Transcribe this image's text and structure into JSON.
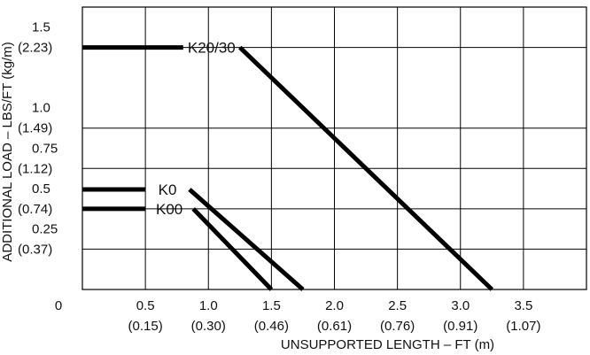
{
  "chart_data": {
    "type": "line",
    "title": "",
    "xlabel": "UNSUPPORTED LENGTH – FT (m)",
    "ylabel": "ADDITIONAL LOAD – LBS/FT (kg/m)",
    "xlim": [
      0,
      4.0
    ],
    "ylim": [
      0,
      1.75
    ],
    "grid": true,
    "x_ticks": [
      {
        "value": 0.5,
        "ft": "0.5",
        "m": "(0.15)"
      },
      {
        "value": 1.0,
        "ft": "1.0",
        "m": "(0.30)"
      },
      {
        "value": 1.5,
        "ft": "1.5",
        "m": "(0.46)"
      },
      {
        "value": 2.0,
        "ft": "2.0",
        "m": "(0.61)"
      },
      {
        "value": 2.5,
        "ft": "2.5",
        "m": "(0.76)"
      },
      {
        "value": 3.0,
        "ft": "3.0",
        "m": "(0.91)"
      },
      {
        "value": 3.5,
        "ft": "3.5",
        "m": "(1.07)"
      }
    ],
    "y_ticks": [
      {
        "value": 0.25,
        "lbs": "0.25",
        "kg": "(0.37)"
      },
      {
        "value": 0.5,
        "lbs": "0.5",
        "kg": "(0.74)"
      },
      {
        "value": 0.75,
        "lbs": "0.75",
        "kg": "(1.12)"
      },
      {
        "value": 1.0,
        "lbs": "1.0",
        "kg": "(1.49)"
      },
      {
        "value": 1.5,
        "lbs": "1.5",
        "kg": "(2.23)"
      }
    ],
    "origin_label": "0",
    "series": [
      {
        "name": "K20/30",
        "label_x": 1.0,
        "points": [
          [
            0.0,
            1.5
          ],
          [
            0.8,
            1.5
          ],
          [
            1.25,
            1.5
          ],
          [
            3.25,
            0.0
          ]
        ]
      },
      {
        "name": "K0",
        "label_x": 0.62,
        "points": [
          [
            0.0,
            0.62
          ],
          [
            0.5,
            0.62
          ],
          [
            0.85,
            0.62
          ],
          [
            1.75,
            0.0
          ]
        ]
      },
      {
        "name": "K00",
        "label_x": 0.62,
        "points": [
          [
            0.0,
            0.5
          ],
          [
            0.5,
            0.5
          ],
          [
            0.88,
            0.5
          ],
          [
            1.5,
            0.0
          ]
        ]
      }
    ]
  }
}
